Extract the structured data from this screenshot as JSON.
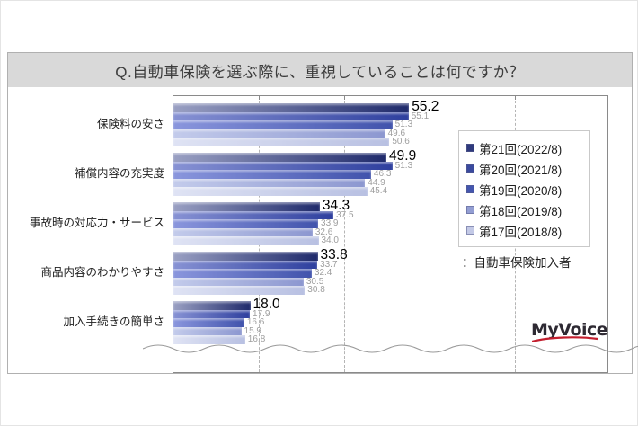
{
  "title": "Q.自動車保険を選ぶ際に、重視していることは何ですか？",
  "note": "：自動車保険加入者",
  "logo": {
    "text": "MyVoice",
    "swoosh_color": "#c21e2e"
  },
  "colors": {
    "title_bar_bg": "#d9d9d9",
    "frame_border": "#b0b0b0",
    "plot_border": "#8a8a8a",
    "gridline": "#b5b5b5",
    "big_value_text": "#000000",
    "small_value_text": "#9e9e9e"
  },
  "chart_data": {
    "type": "bar",
    "orientation": "horizontal",
    "title": "Q.自動車保険を選ぶ際に、重視していることは何ですか？",
    "xlabel": "",
    "ylabel": "",
    "xlim": [
      0,
      100
    ],
    "xticks": [
      20,
      40,
      60,
      80
    ],
    "grid": "dashed-vertical",
    "legend_position": "right",
    "value_format": "one-decimal",
    "categories": [
      "保険料の安さ",
      "補償内容の充実度",
      "事故時の対応力・サービス",
      "商品内容のわかりやすさ",
      "加入手続きの簡単さ"
    ],
    "series": [
      {
        "name": "第21回(2022/8)",
        "legend_color": "#2f3a7d",
        "bar_light": "#9aa0c3",
        "bar_dark": "#1f2a6b",
        "values": [
          55.2,
          49.9,
          34.3,
          33.8,
          18.0
        ],
        "emphasized": true
      },
      {
        "name": "第20回(2021/8)",
        "legend_color": "#3a4a9e",
        "bar_light": "#8792d4",
        "bar_dark": "#2e3f9e",
        "values": [
          55.1,
          51.3,
          37.5,
          33.7,
          17.9
        ],
        "emphasized": false
      },
      {
        "name": "第19回(2020/8)",
        "legend_color": "#4456ae",
        "bar_light": "#8a96dd",
        "bar_dark": "#4153ac",
        "values": [
          51.3,
          46.3,
          33.9,
          32.4,
          16.6
        ],
        "emphasized": false
      },
      {
        "name": "第18回(2019/8)",
        "legend_color": "#939ed3",
        "bar_light": "#c3cbeb",
        "bar_dark": "#8c97d0",
        "values": [
          49.6,
          44.9,
          32.6,
          30.5,
          15.9
        ],
        "emphasized": false
      },
      {
        "name": "第17回(2018/8)",
        "legend_color": "#c3c9e6",
        "bar_light": "#dfe3f4",
        "bar_dark": "#b8c0e2",
        "values": [
          50.6,
          45.4,
          34.0,
          30.8,
          16.8
        ],
        "emphasized": false
      }
    ]
  }
}
